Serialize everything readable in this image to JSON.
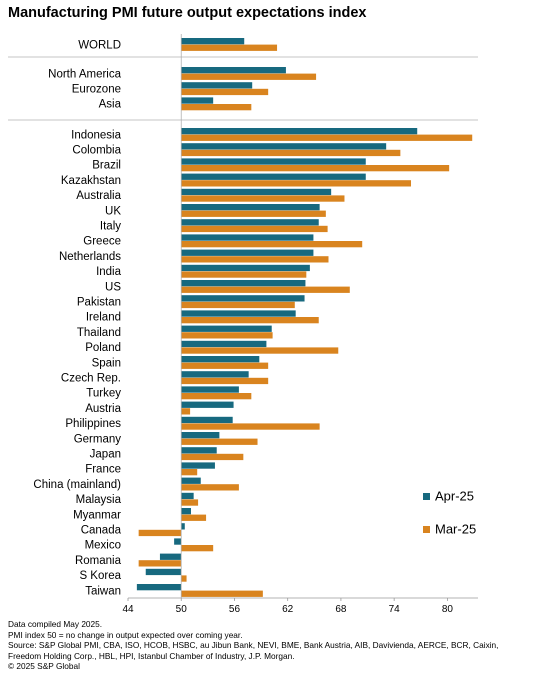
{
  "title": "Manufacturing PMI future output expectations index",
  "chart_data": {
    "type": "bar",
    "orientation": "horizontal",
    "baseline": 50,
    "xlim": [
      44,
      83
    ],
    "xticks": [
      44,
      50,
      56,
      62,
      68,
      74,
      80
    ],
    "series": [
      {
        "name": "Apr-25",
        "color": "#17697f"
      },
      {
        "name": "Mar-25",
        "color": "#d9841f"
      }
    ],
    "groups": [
      [
        {
          "label": "WORLD",
          "apr": 57.1,
          "mar": 60.8
        }
      ],
      [
        {
          "label": "North America",
          "apr": 61.8,
          "mar": 65.2
        },
        {
          "label": "Eurozone",
          "apr": 58.0,
          "mar": 59.8
        },
        {
          "label": "Asia",
          "apr": 53.6,
          "mar": 57.9
        }
      ],
      [
        {
          "label": "Indonesia",
          "apr": 76.6,
          "mar": 82.8
        },
        {
          "label": "Colombia",
          "apr": 73.1,
          "mar": 74.7
        },
        {
          "label": "Brazil",
          "apr": 70.8,
          "mar": 80.2
        },
        {
          "label": "Kazakhstan",
          "apr": 70.8,
          "mar": 75.9
        },
        {
          "label": "Australia",
          "apr": 66.9,
          "mar": 68.4
        },
        {
          "label": "UK",
          "apr": 65.6,
          "mar": 66.3
        },
        {
          "label": "Italy",
          "apr": 65.5,
          "mar": 66.5
        },
        {
          "label": "Greece",
          "apr": 64.9,
          "mar": 70.4
        },
        {
          "label": "Netherlands",
          "apr": 64.9,
          "mar": 66.6
        },
        {
          "label": "India",
          "apr": 64.5,
          "mar": 64.1
        },
        {
          "label": "US",
          "apr": 64.0,
          "mar": 69.0
        },
        {
          "label": "Pakistan",
          "apr": 63.9,
          "mar": 62.8
        },
        {
          "label": "Ireland",
          "apr": 62.9,
          "mar": 65.5
        },
        {
          "label": "Thailand",
          "apr": 60.2,
          "mar": 60.3
        },
        {
          "label": "Poland",
          "apr": 59.6,
          "mar": 67.7
        },
        {
          "label": "Spain",
          "apr": 58.8,
          "mar": 59.8
        },
        {
          "label": "Czech Rep.",
          "apr": 57.6,
          "mar": 59.8
        },
        {
          "label": "Turkey",
          "apr": 56.5,
          "mar": 57.9
        },
        {
          "label": "Austria",
          "apr": 55.9,
          "mar": 51.0
        },
        {
          "label": "Philippines",
          "apr": 55.8,
          "mar": 65.6
        },
        {
          "label": "Germany",
          "apr": 54.3,
          "mar": 58.6
        },
        {
          "label": "Japan",
          "apr": 54.0,
          "mar": 57.0
        },
        {
          "label": "France",
          "apr": 53.8,
          "mar": 51.8
        },
        {
          "label": "China (mainland)",
          "apr": 52.2,
          "mar": 56.5
        },
        {
          "label": "Malaysia",
          "apr": 51.4,
          "mar": 51.9
        },
        {
          "label": "Myanmar",
          "apr": 51.1,
          "mar": 52.8
        },
        {
          "label": "Canada",
          "apr": 50.4,
          "mar": 45.2
        },
        {
          "label": "Mexico",
          "apr": 49.2,
          "mar": 53.6
        },
        {
          "label": "Romania",
          "apr": 47.6,
          "mar": 45.2
        },
        {
          "label": "S Korea",
          "apr": 46.0,
          "mar": 50.6
        },
        {
          "label": "Taiwan",
          "apr": 45.0,
          "mar": 59.2
        }
      ]
    ],
    "legend_position": "right"
  },
  "notes": [
    "Data compiled May 2025.",
    "PMI index 50 = no change in output expected over coming year.",
    "Source: S&P Global PMI, CBA, ISO, HCOB, HSBC, au Jibun Bank, NEVI, BME, Bank Austria, AIB, Davivienda, AERCE, BCR, Caixin, Freedom Holding Corp., HBL, HPI, Istanbul Chamber of Industry, J.P. Morgan.",
    "© 2025 S&P Global"
  ]
}
